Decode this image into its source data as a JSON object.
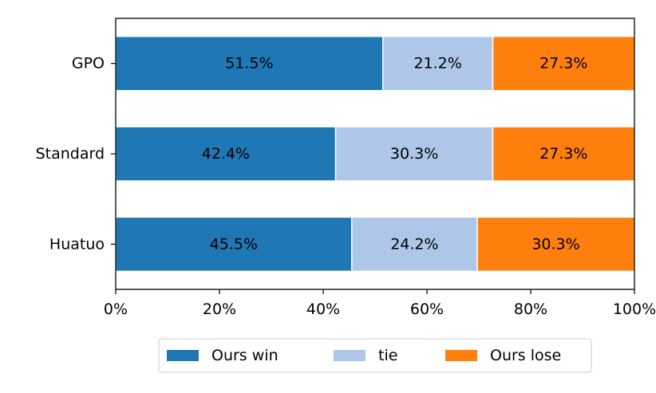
{
  "chart_data": {
    "type": "bar",
    "orientation": "horizontal",
    "stacked": true,
    "categories": [
      "GPO",
      "Standard",
      "Huatuo"
    ],
    "series": [
      {
        "name": "Ours win",
        "values": [
          51.5,
          42.4,
          45.5
        ],
        "color": "#1f77b4"
      },
      {
        "name": "tie",
        "values": [
          21.2,
          30.3,
          24.2
        ],
        "color": "#aec7e8"
      },
      {
        "name": "Ours lose",
        "values": [
          27.3,
          27.3,
          30.3
        ],
        "color": "#ff7f0e"
      }
    ],
    "data_labels": [
      [
        "51.5%",
        "21.2%",
        "27.3%"
      ],
      [
        "42.4%",
        "30.3%",
        "27.3%"
      ],
      [
        "45.5%",
        "24.2%",
        "30.3%"
      ]
    ],
    "xlim": [
      0,
      100
    ],
    "xticks": [
      0,
      20,
      40,
      60,
      80,
      100
    ],
    "xtick_labels": [
      "0%",
      "20%",
      "40%",
      "60%",
      "80%",
      "100%"
    ],
    "title": "",
    "xlabel": "",
    "ylabel": "",
    "grid": false,
    "legend_position": "bottom-center"
  }
}
